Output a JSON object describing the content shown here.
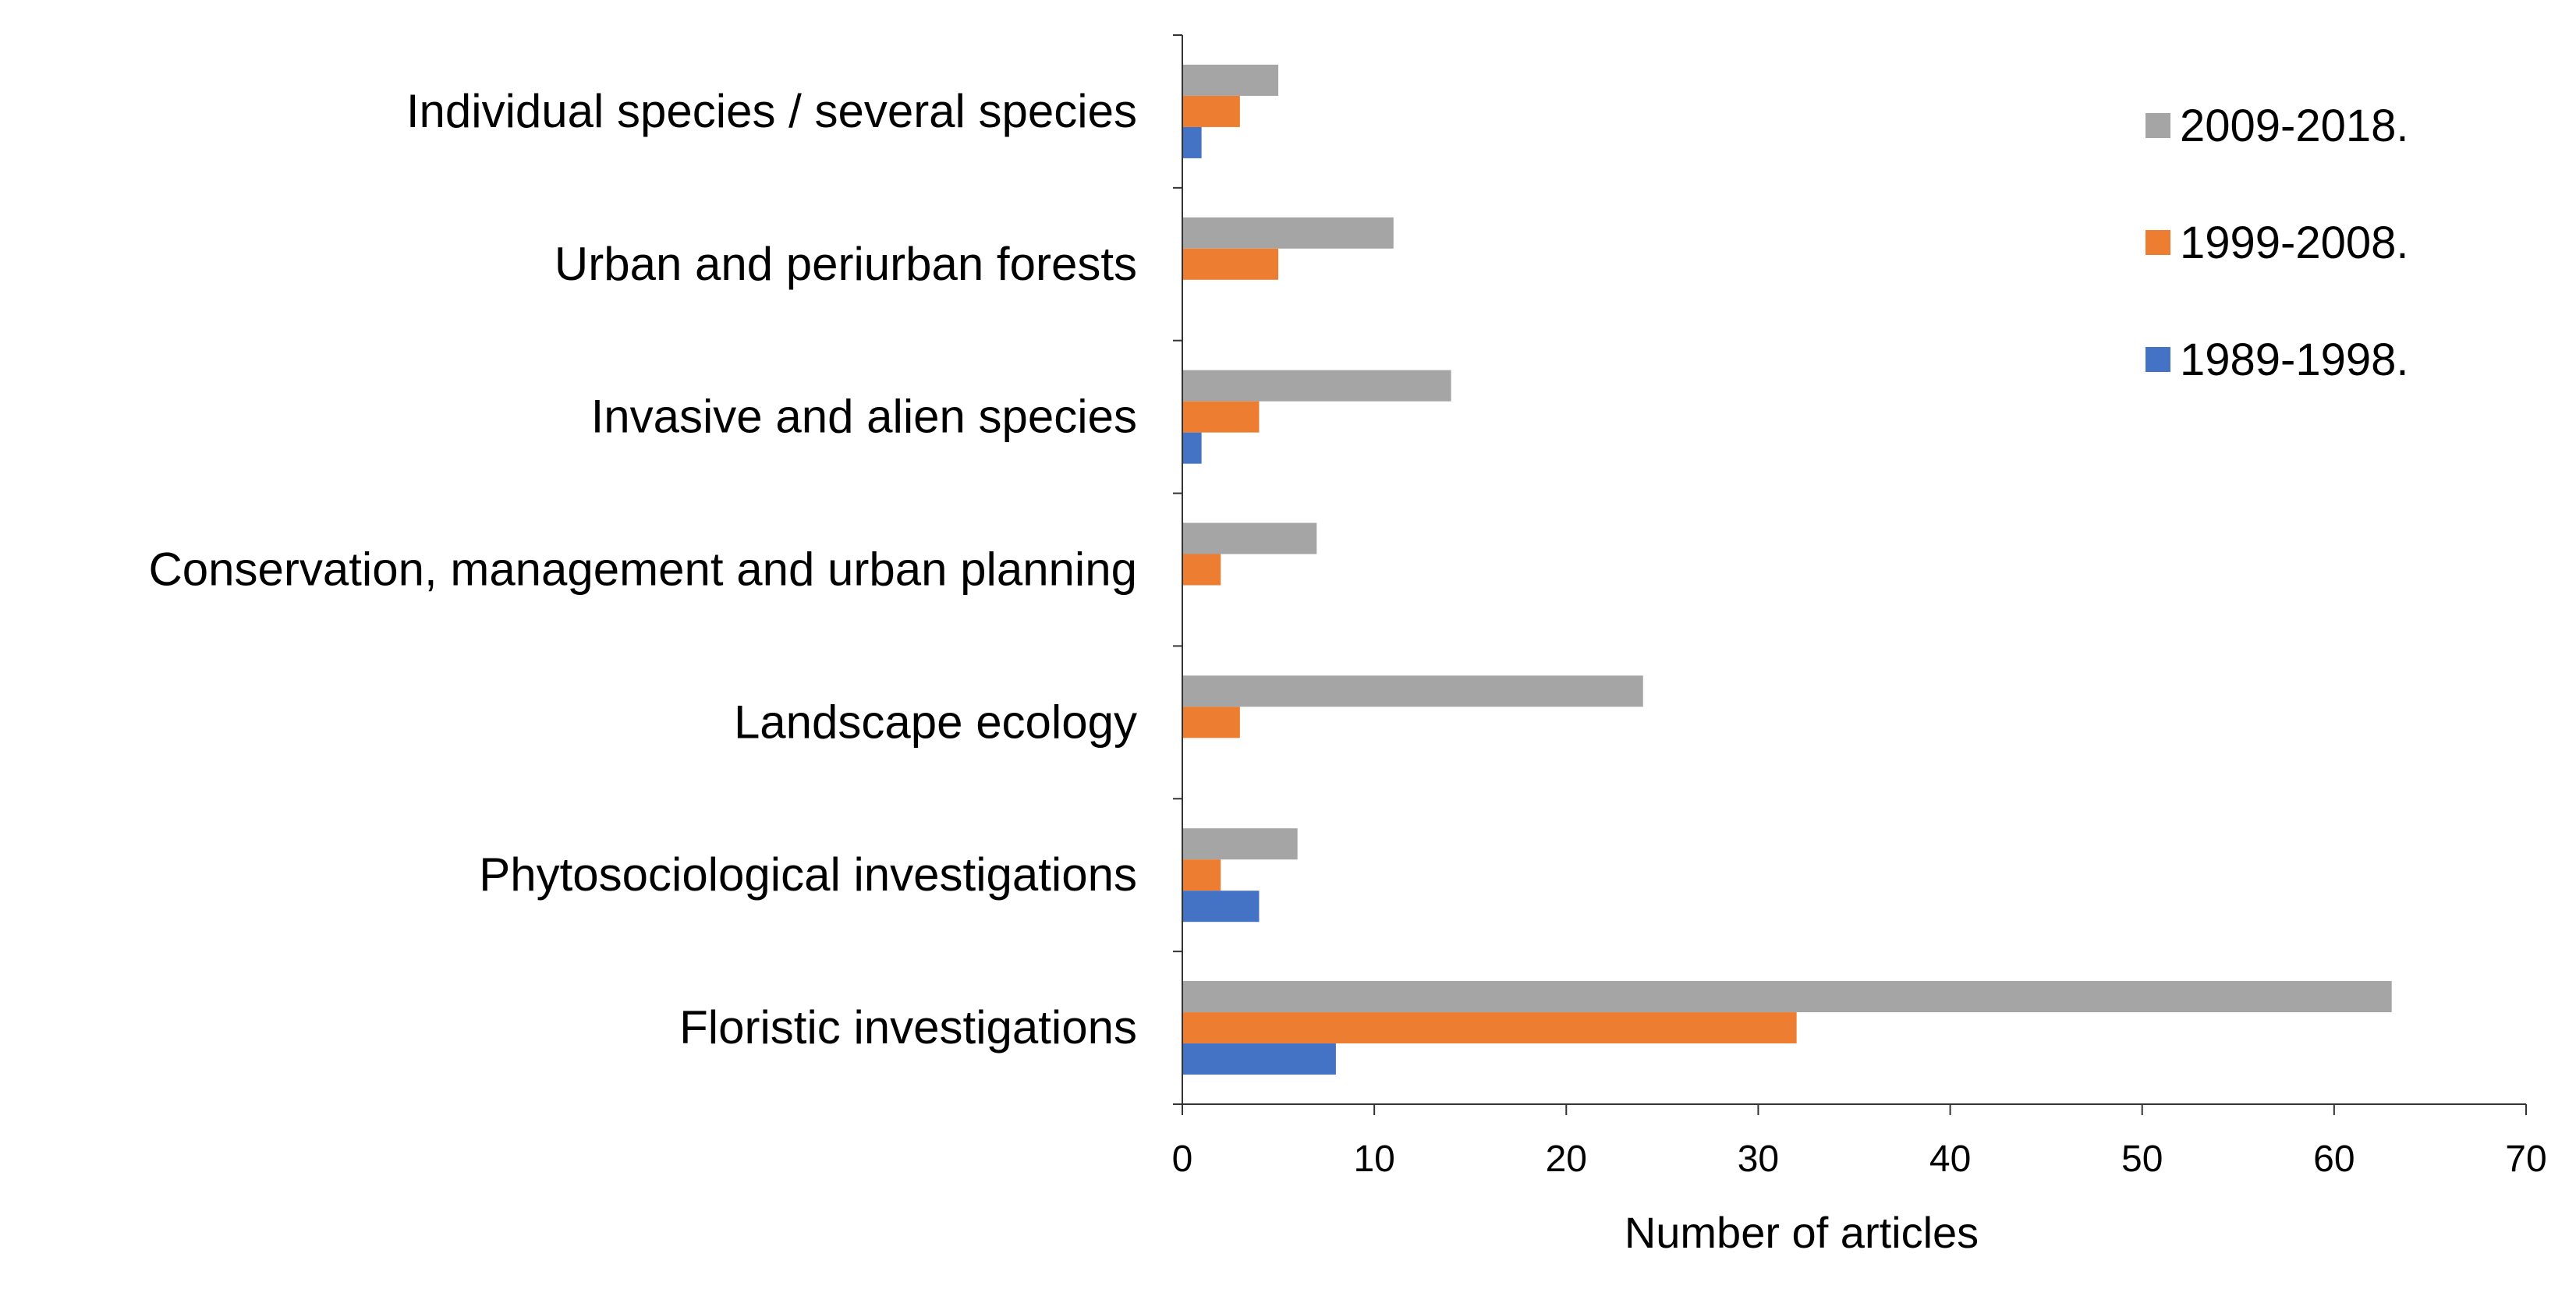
{
  "chart_data": {
    "type": "bar",
    "orientation": "horizontal",
    "categories": [
      "Individual species / several species",
      "Urban and periurban forests",
      "Invasive and alien species",
      "Conservation, management and urban planning",
      "Landscape ecology",
      "Phytosociological investigations",
      "Floristic investigations"
    ],
    "series": [
      {
        "name": "2009-2018.",
        "color": "#a5a5a5",
        "values": [
          5,
          11,
          14,
          7,
          24,
          6,
          63
        ]
      },
      {
        "name": "1999-2008.",
        "color": "#ed7d31",
        "values": [
          3,
          5,
          4,
          2,
          3,
          2,
          32
        ]
      },
      {
        "name": "1989-1998.",
        "color": "#4472c4",
        "values": [
          1,
          0,
          1,
          0,
          0,
          4,
          8
        ]
      }
    ],
    "xlabel": "Number of articles",
    "ylabel": "",
    "xlim": [
      0,
      70
    ],
    "xticks": [
      "0",
      "10",
      "20",
      "30",
      "40",
      "50",
      "60",
      "70"
    ],
    "grid": false,
    "legend_position": "top-right"
  }
}
